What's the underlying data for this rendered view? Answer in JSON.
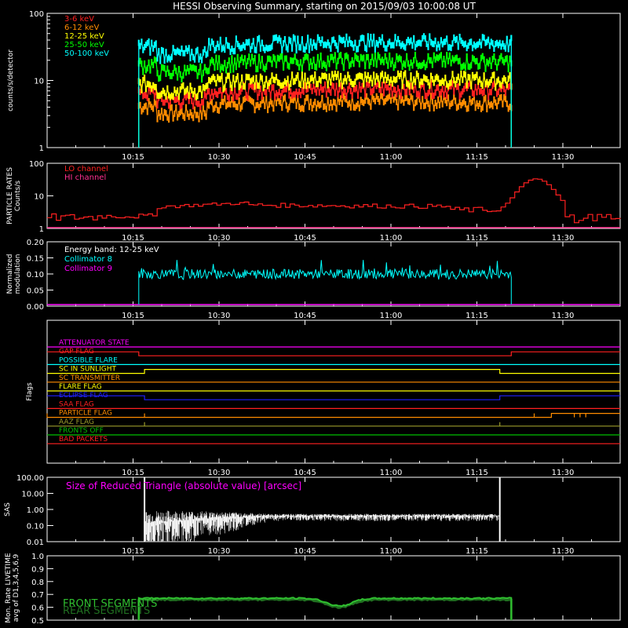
{
  "title": "HESSI Observing Summary, starting on 2015/09/03 10:00:08 UT",
  "colors": {
    "background": "#000000",
    "axes": "#ffffff",
    "red": "#ff2020",
    "orange": "#ff8c00",
    "yellow": "#ffff00",
    "green": "#00ff00",
    "cyan": "#00ffff",
    "magenta": "#ff00ff",
    "pink": "#ff3090",
    "blue": "#2020ff",
    "olive": "#9a9a2a",
    "flag_green": "#00c000",
    "front_green": "#30c030",
    "rear_green": "#207020"
  },
  "time_ticks": [
    "10:15",
    "10:30",
    "10:45",
    "11:00",
    "11:15",
    "11:30"
  ],
  "chart_data": [
    {
      "type": "line",
      "id": "count-rates",
      "ylabel": "counts/s/detector",
      "yscale": "log",
      "ylim": [
        1,
        100
      ],
      "ytick_labels": [
        "1",
        "10",
        "100"
      ],
      "xlim": [
        "10:00:08",
        "11:40:00"
      ],
      "series": [
        {
          "name": "3-6 keV",
          "color": "#ff2020",
          "level": 6.5,
          "t": [
            "10:16",
            "11:21"
          ]
        },
        {
          "name": "6-12 keV",
          "color": "#ff8c00",
          "level": 4.2,
          "t": [
            "10:16",
            "11:21"
          ]
        },
        {
          "name": "12-25 keV",
          "color": "#ffff00",
          "level": 9.0,
          "t": [
            "10:16",
            "11:21"
          ]
        },
        {
          "name": "25-50 keV",
          "color": "#00ff00",
          "level": 17.0,
          "t": [
            "10:16",
            "11:21"
          ]
        },
        {
          "name": "50-100 keV",
          "color": "#00ffff",
          "level": 32.0,
          "t": [
            "10:16",
            "11:21"
          ]
        }
      ]
    },
    {
      "type": "line",
      "id": "particle-rates",
      "ylabel": "PARTICLE RATES Counts/s",
      "yscale": "log",
      "ylim": [
        1,
        100
      ],
      "ytick_labels": [
        "1",
        "10",
        "100"
      ],
      "series": [
        {
          "name": "LO channel",
          "color": "#ff2020",
          "base": 5,
          "peak_time": "11:25",
          "peak": 30
        },
        {
          "name": "HI channel",
          "color": "#ff3090",
          "base": 1
        }
      ]
    },
    {
      "type": "line",
      "id": "modulation",
      "ylabel": "Normalized modulation",
      "ylim": [
        0.0,
        0.2
      ],
      "ytick_labels": [
        "0.00",
        "0.05",
        "0.10",
        "0.15",
        "0.20"
      ],
      "annotation": "Energy band: 12-25 keV",
      "series": [
        {
          "name": "Collimator 8",
          "color": "#00ffff",
          "level": 0.1,
          "t": [
            "10:16",
            "11:21"
          ]
        },
        {
          "name": "Collimator 9",
          "color": "#ff00ff",
          "level": 0.0
        }
      ]
    },
    {
      "type": "line",
      "id": "flags",
      "ylabel": "Flags",
      "series": [
        {
          "name": "ATTENUATOR STATE",
          "color": "#ff00ff"
        },
        {
          "name": "GAP FLAG",
          "color": "#ff2020"
        },
        {
          "name": "POSSIBLE FLARE",
          "color": "#00ffff"
        },
        {
          "name": "SC IN SUNLIGHT",
          "color": "#ffff00"
        },
        {
          "name": "SC TRANSMITTER",
          "color": "#ff8c00"
        },
        {
          "name": "FLARE FLAG",
          "color": "#ffff00"
        },
        {
          "name": "ECLIPSE FLAG",
          "color": "#2020ff"
        },
        {
          "name": "SAA FLAG",
          "color": "#ff2020"
        },
        {
          "name": "PARTICLE FLAG",
          "color": "#ff8c00"
        },
        {
          "name": "AAZ FLAG",
          "color": "#9a9a2a"
        },
        {
          "name": "FRONTS OFF",
          "color": "#00c000"
        },
        {
          "name": "BAD PACKETS",
          "color": "#ff2020"
        }
      ]
    },
    {
      "type": "line",
      "id": "sas",
      "ylabel": "SAS",
      "yscale": "log",
      "ylim": [
        0.01,
        100
      ],
      "ytick_labels": [
        "100.00",
        "10.00",
        "1.00",
        "0.10",
        "0.01"
      ],
      "annotation": "Size of Reduced Triangle (absolute value) [arcsec]",
      "series": [
        {
          "name": "Size of Reduced Triangle",
          "color": "#ffffff",
          "level": 0.4,
          "t": [
            "10:17",
            "11:19"
          ]
        }
      ]
    },
    {
      "type": "line",
      "id": "livetime",
      "ylabel": "Mon. Rate LIVETIME avg of D1,3,4,5,6,9",
      "ylim": [
        0.5,
        1.0
      ],
      "ytick_labels": [
        "0.5",
        "0.6",
        "0.7",
        "0.8",
        "0.9",
        "1.0"
      ],
      "series": [
        {
          "name": "FRONT SEGMENTS",
          "color": "#30c030",
          "level": 0.67,
          "t": [
            "10:16",
            "11:21"
          ]
        },
        {
          "name": "REAR SEGMENTS",
          "color": "#207020",
          "level": 0.66,
          "t": [
            "10:16",
            "11:21"
          ]
        }
      ]
    }
  ]
}
